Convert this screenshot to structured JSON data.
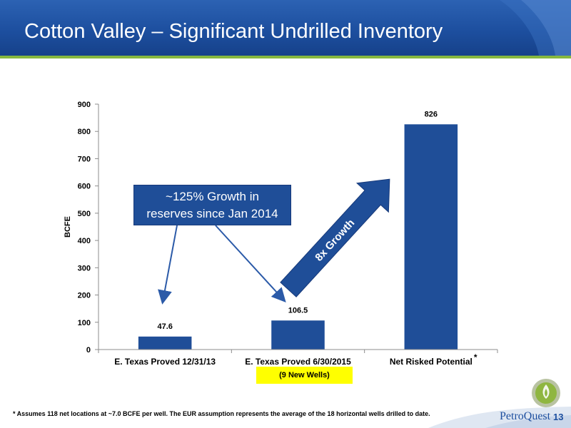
{
  "slide": {
    "title": "Cotton Valley – Significant Undrilled Inventory",
    "callout_line1": "~125% Growth in",
    "callout_line2": "reserves since Jan 2014",
    "growth_arrow_label": "8x Growth",
    "new_wells_note": "(9 New Wells)",
    "footnote": "* Assumes 118 net locations at ~7.0 BCFE per well.  The EUR assumption represents the average of the 18 horizontal wells drilled to date.",
    "logo_text": "PetroQuest",
    "page_number": "13"
  },
  "colors": {
    "bar": "#1f4e98",
    "header": "#1d4f9f",
    "accent_green": "#86b83f",
    "highlight": "#ffff00"
  },
  "chart_data": {
    "type": "bar",
    "categories": [
      "E. Texas Proved 12/31/13",
      "E. Texas Proved 6/30/2015",
      "Net Risked Potential"
    ],
    "category_markers": [
      "",
      "",
      "*"
    ],
    "values": [
      47.6,
      106.5,
      826
    ],
    "data_labels": [
      "47.6",
      "106.5",
      "826"
    ],
    "ylabel": "BCFE",
    "ylim": [
      0,
      900
    ],
    "yticks": [
      0,
      100,
      200,
      300,
      400,
      500,
      600,
      700,
      800,
      900
    ],
    "grid": false,
    "legend": "none"
  }
}
